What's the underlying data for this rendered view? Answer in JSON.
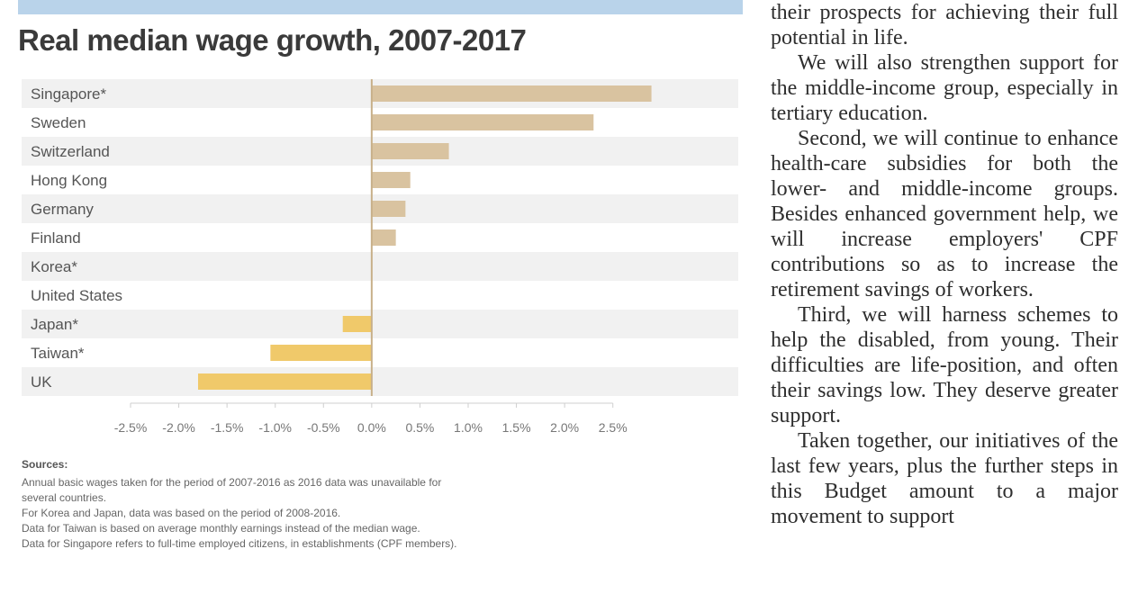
{
  "chart_data": {
    "type": "bar",
    "orientation": "horizontal",
    "title": "Real median wage growth, 2007-2017",
    "categories": [
      "Singapore*",
      "Sweden",
      "Switzerland",
      "Hong Kong",
      "Germany",
      "Finland",
      "Korea*",
      "United States",
      "Japan*",
      "Taiwan*",
      "UK"
    ],
    "values": [
      2.9,
      2.3,
      0.8,
      0.4,
      0.35,
      0.25,
      0.0,
      0.0,
      -0.3,
      -1.05,
      -1.8
    ],
    "xlim": [
      -2.5,
      3.8
    ],
    "ticks": [
      -2.5,
      -2.0,
      -1.5,
      -1.0,
      -0.5,
      0.0,
      0.5,
      1.0,
      1.5,
      2.0,
      2.5
    ],
    "tick_labels": [
      "-2.5%",
      "-2.0%",
      "-1.5%",
      "-1.0%",
      "-0.5%",
      "0.0%",
      "0.5%",
      "1.0%",
      "1.5%",
      "2.0%",
      "2.5%"
    ],
    "grid": false,
    "row_banding": true,
    "colors": {
      "positive": "#d9c3a0",
      "negative": "#f0c96a",
      "band": "#f1f1f1",
      "zero_line": "#c8b08a"
    }
  },
  "notes": {
    "heading": "Sources:",
    "lines": [
      "Annual basic wages taken for the period of 2007-2016 as 2016 data was unavailable for",
      "several countries.",
      "For Korea and Japan, data was based on the period of 2008-2016.",
      "Data for Taiwan is based on average monthly earnings instead of the median wage.",
      "Data for Singapore refers to full-time employed citizens, in establishments (CPF members)."
    ]
  },
  "article": {
    "paragraphs": [
      {
        "text": "their prospects for achieving their full potential in life.",
        "indent": false
      },
      {
        "text": "We will also strengthen support for the middle-income group, especially in tertiary education.",
        "indent": true
      },
      {
        "text": "Second, we will continue to enhance health-care subsidies for both the lower- and middle-income groups. Besides enhanced government help, we will increase employers' CPF contributions so as to increase the retirement savings of workers.",
        "indent": true
      },
      {
        "text": "Third, we will harness schemes to help the disabled, from young. Their difficulties are life-position, and often their savings low. They deserve greater support.",
        "indent": true
      },
      {
        "text": "Taken together, our initiatives of the last few years, plus the further steps in this Budget amount to a major movement to support",
        "indent": true
      }
    ]
  }
}
